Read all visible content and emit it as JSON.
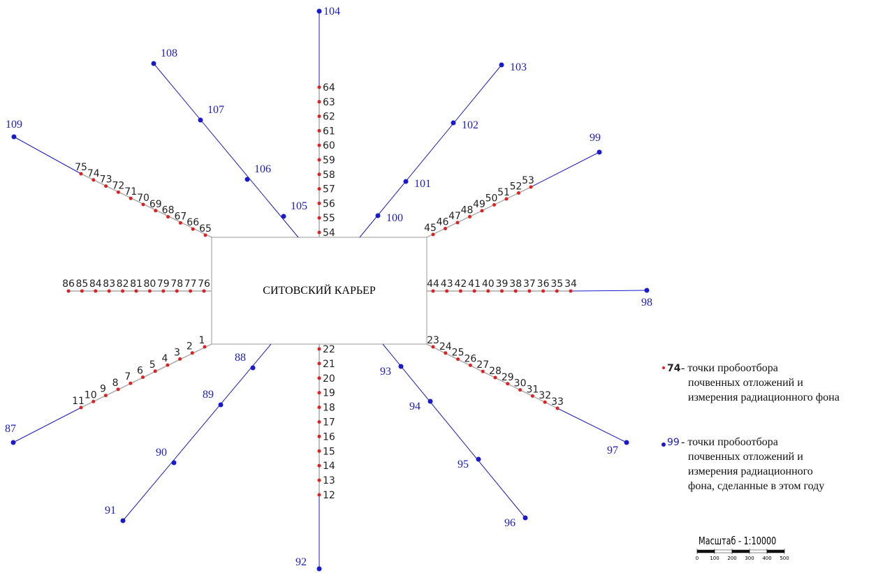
{
  "title": "СИТОВСКИЙ КАРЬЕР",
  "rays": [
    {
      "red": [
        54,
        55,
        56,
        57,
        58,
        59,
        60,
        61,
        62,
        63,
        64
      ],
      "blue": [
        104
      ]
    },
    {
      "red": [
        22,
        21,
        20,
        19,
        18,
        17,
        16,
        15,
        14,
        13,
        12
      ],
      "blue": [
        92
      ]
    },
    {
      "red": [
        44,
        43,
        42,
        41,
        40,
        39,
        38,
        37,
        36,
        35,
        34
      ],
      "blue": [
        98
      ]
    },
    {
      "red": [
        76,
        77,
        78,
        79,
        80,
        81,
        82,
        83,
        84,
        85,
        86
      ],
      "blue": []
    },
    {
      "red": [
        45,
        46,
        47,
        48,
        49,
        50,
        51,
        52,
        53
      ],
      "blue": [
        99
      ]
    },
    {
      "red": [
        65,
        66,
        67,
        68,
        69,
        70,
        71,
        72,
        73,
        74,
        75
      ],
      "blue": [
        109
      ]
    },
    {
      "red": [
        23,
        24,
        25,
        26,
        27,
        28,
        29,
        30,
        31,
        32,
        33
      ],
      "blue": [
        97
      ]
    },
    {
      "red": [
        1,
        2,
        3,
        4,
        5,
        6,
        7,
        8,
        9,
        10,
        11
      ],
      "blue": [
        87
      ]
    },
    {
      "red": [],
      "blue": [
        105,
        106,
        107,
        108
      ]
    },
    {
      "red": [],
      "blue": [
        100,
        101,
        102,
        103
      ]
    },
    {
      "red": [],
      "blue": [
        88,
        89,
        90,
        91
      ]
    },
    {
      "red": [],
      "blue": [
        93,
        94,
        95,
        96
      ]
    }
  ],
  "legend": [
    {
      "label": 74,
      "text": [
        "- точки пробоотбора",
        "почвенных отложений и",
        "измерения радиационного фона"
      ]
    },
    {
      "label": 99,
      "text": [
        "- точки пробоотбора",
        "почвенных отложений и",
        "измерения радиационного",
        "фона, сделанные в этом году"
      ]
    }
  ],
  "scale": {
    "title": "Масштаб - 1:10000",
    "ticks": [
      0,
      100,
      200,
      300,
      400,
      500
    ]
  }
}
